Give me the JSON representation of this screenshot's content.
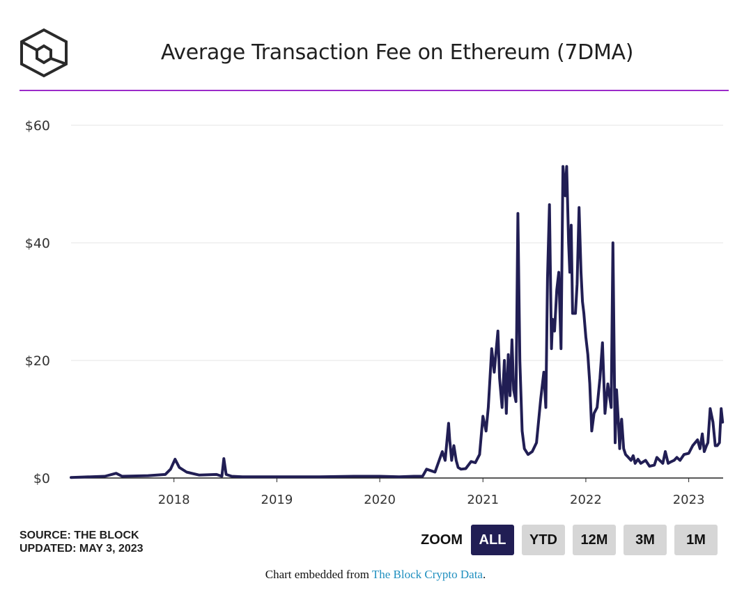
{
  "header": {
    "title": "Average Transaction Fee on Ethereum (7DMA)",
    "accent_color": "#9b2bc9",
    "logo_icon": "the-block-cube-logo"
  },
  "chart_data": {
    "type": "line",
    "title": "Average Transaction Fee on Ethereum (7DMA)",
    "xlabel": "",
    "ylabel": "",
    "ylim": [
      0,
      60
    ],
    "y_ticks": [
      "$0",
      "$20",
      "$40",
      "$60"
    ],
    "x_ticks": [
      "2018",
      "2019",
      "2020",
      "2021",
      "2022",
      "2023"
    ],
    "grid": true,
    "line_color": "#211e54",
    "series": [
      {
        "name": "",
        "x": [
          "2017-01-01",
          "2017-05-01",
          "2017-06-10",
          "2017-07-01",
          "2017-10-01",
          "2017-12-01",
          "2017-12-20",
          "2018-01-05",
          "2018-01-20",
          "2018-02-15",
          "2018-04-01",
          "2018-06-01",
          "2018-06-20",
          "2018-06-27",
          "2018-07-05",
          "2018-07-25",
          "2018-09-01",
          "2018-12-01",
          "2019-06-01",
          "2019-10-01",
          "2020-01-01",
          "2020-03-10",
          "2020-05-01",
          "2020-06-01",
          "2020-06-15",
          "2020-07-15",
          "2020-08-10",
          "2020-08-20",
          "2020-09-01",
          "2020-09-05",
          "2020-09-12",
          "2020-09-20",
          "2020-09-28",
          "2020-10-05",
          "2020-10-15",
          "2020-11-01",
          "2020-11-20",
          "2020-12-05",
          "2020-12-20",
          "2021-01-01",
          "2021-01-12",
          "2021-01-20",
          "2021-02-01",
          "2021-02-10",
          "2021-02-23",
          "2021-03-01",
          "2021-03-10",
          "2021-03-18",
          "2021-03-25",
          "2021-04-01",
          "2021-04-07",
          "2021-04-14",
          "2021-04-20",
          "2021-04-28",
          "2021-05-05",
          "2021-05-12",
          "2021-05-20",
          "2021-05-28",
          "2021-06-10",
          "2021-06-25",
          "2021-07-10",
          "2021-07-25",
          "2021-08-05",
          "2021-08-12",
          "2021-08-18",
          "2021-08-25",
          "2021-09-01",
          "2021-09-05",
          "2021-09-12",
          "2021-09-20",
          "2021-09-27",
          "2021-10-05",
          "2021-10-12",
          "2021-10-20",
          "2021-10-25",
          "2021-11-01",
          "2021-11-05",
          "2021-11-10",
          "2021-11-15",
          "2021-11-20",
          "2021-11-25",
          "2021-12-01",
          "2021-12-08",
          "2021-12-15",
          "2021-12-20",
          "2021-12-25",
          "2022-01-01",
          "2022-01-08",
          "2022-01-15",
          "2022-01-22",
          "2022-01-30",
          "2022-02-10",
          "2022-02-20",
          "2022-03-01",
          "2022-03-10",
          "2022-03-20",
          "2022-04-01",
          "2022-04-07",
          "2022-04-15",
          "2022-04-20",
          "2022-04-27",
          "2022-05-01",
          "2022-05-04",
          "2022-05-08",
          "2022-05-15",
          "2022-05-22",
          "2022-06-01",
          "2022-06-10",
          "2022-06-18",
          "2022-06-25",
          "2022-07-05",
          "2022-07-15",
          "2022-08-01",
          "2022-08-15",
          "2022-09-01",
          "2022-09-10",
          "2022-09-20",
          "2022-10-01",
          "2022-10-10",
          "2022-10-20",
          "2022-11-01",
          "2022-11-10",
          "2022-11-20",
          "2022-12-01",
          "2022-12-15",
          "2023-01-01",
          "2023-01-15",
          "2023-02-01",
          "2023-02-10",
          "2023-02-18",
          "2023-02-25",
          "2023-03-05",
          "2023-03-10",
          "2023-03-18",
          "2023-03-28",
          "2023-04-05",
          "2023-04-12",
          "2023-04-20",
          "2023-04-26",
          "2023-05-01"
        ],
        "values": [
          0.1,
          0.3,
          0.8,
          0.3,
          0.4,
          0.6,
          1.5,
          3.2,
          1.8,
          1.0,
          0.5,
          0.6,
          0.3,
          3.3,
          0.6,
          0.3,
          0.2,
          0.2,
          0.2,
          0.3,
          0.3,
          0.2,
          0.3,
          0.3,
          1.5,
          1.0,
          4.5,
          3.0,
          9.3,
          6.5,
          3.0,
          5.5,
          3.0,
          1.8,
          1.5,
          1.6,
          2.8,
          2.6,
          4.0,
          10.5,
          8.0,
          12.0,
          22.0,
          18.0,
          25.0,
          17.0,
          12.0,
          20.0,
          11.0,
          21.0,
          14.0,
          23.5,
          15.0,
          13.0,
          45.0,
          20.0,
          8.0,
          5.0,
          4.0,
          4.5,
          6.0,
          13.5,
          18.0,
          12.0,
          34.0,
          46.5,
          22.0,
          27.0,
          25.0,
          32.0,
          35.0,
          22.0,
          53.0,
          48.0,
          53.0,
          40.0,
          35.0,
          43.0,
          28.0,
          28.0,
          28.0,
          33.0,
          46.0,
          35.0,
          30.0,
          28.0,
          24.0,
          21.0,
          16.0,
          8.0,
          11.0,
          12.0,
          17.0,
          23.0,
          11.0,
          16.0,
          12.0,
          40.0,
          6.0,
          15.0,
          9.0,
          5.0,
          8.0,
          10.0,
          5.0,
          4.0,
          3.5,
          3.0,
          3.8,
          2.5,
          3.2,
          2.5,
          3.0,
          2.0,
          2.2,
          3.5,
          3.0,
          2.5,
          4.5,
          2.5,
          2.8,
          3.0,
          3.5,
          3.0,
          4.0,
          4.2,
          5.5,
          6.5,
          5.0,
          7.5,
          4.5,
          5.5,
          6.0,
          11.8,
          9.5,
          5.5,
          5.5,
          6.0,
          11.8,
          9.5
        ]
      }
    ]
  },
  "footer": {
    "source": "SOURCE: THE BLOCK",
    "updated": "UPDATED: MAY 3, 2023",
    "zoom_label": "ZOOM",
    "zoom_buttons": [
      "ALL",
      "YTD",
      "12M",
      "3M",
      "1M"
    ],
    "embed_prefix": "Chart embedded from",
    "embed_link": "The Block Crypto Data",
    "embed_suffix": "."
  }
}
